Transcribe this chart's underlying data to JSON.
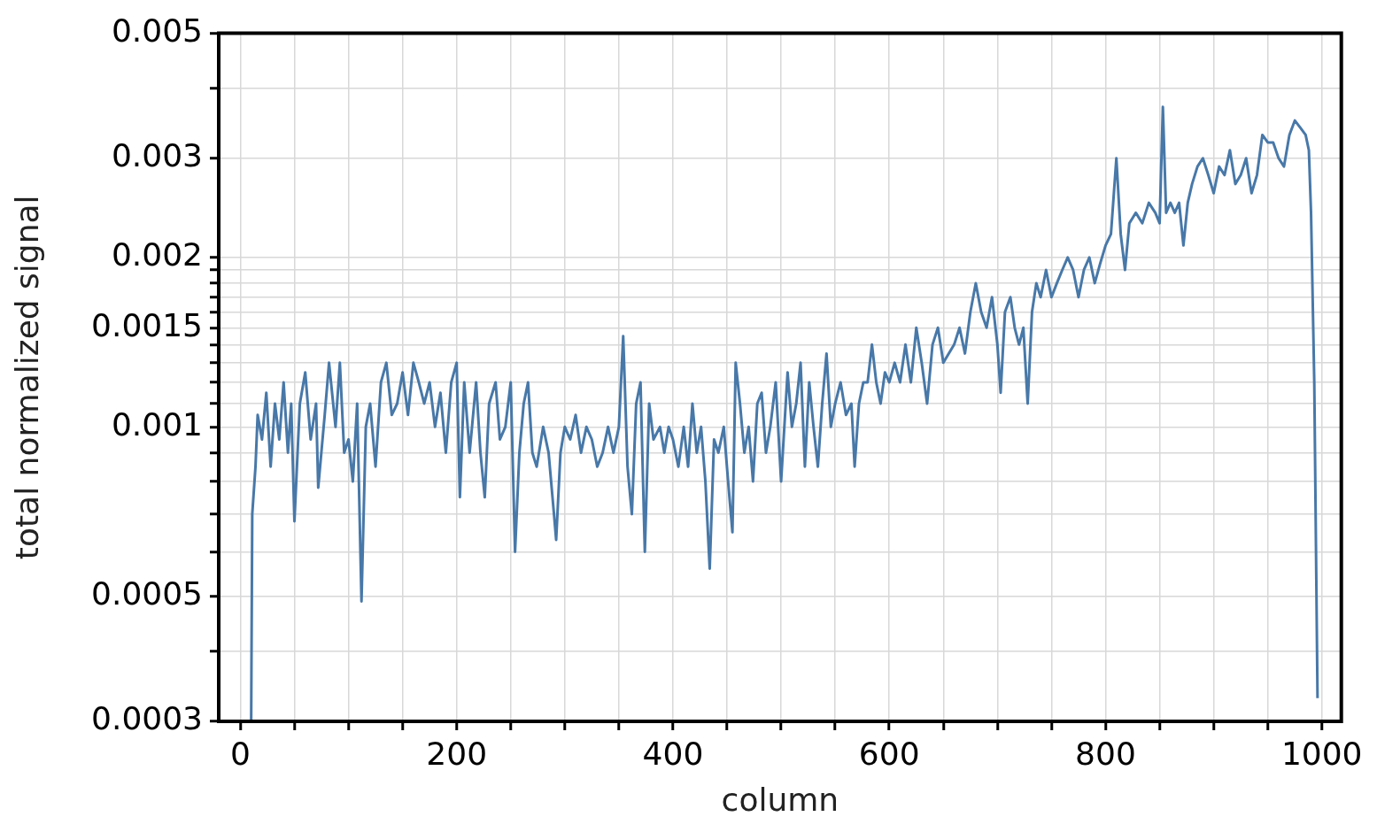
{
  "chart_data": {
    "type": "line",
    "xlabel": "column",
    "ylabel": "total normalized signal",
    "log": "y",
    "grid": true,
    "marker": "none",
    "line_style": "solid",
    "xlim": [
      -20,
      1018
    ],
    "ylim": [
      0.0003,
      0.005
    ],
    "xticks": [
      0,
      {
        "value": 50,
        "label": null
      },
      {
        "value": 100,
        "label": null
      },
      {
        "value": 150,
        "label": null
      },
      200,
      {
        "value": 250,
        "label": null
      },
      {
        "value": 300,
        "label": null
      },
      {
        "value": 350,
        "label": null
      },
      400,
      {
        "value": 450,
        "label": null
      },
      {
        "value": 500,
        "label": null
      },
      {
        "value": 550,
        "label": null
      },
      600,
      {
        "value": 650,
        "label": null
      },
      {
        "value": 700,
        "label": null
      },
      {
        "value": 750,
        "label": null
      },
      800,
      {
        "value": 850,
        "label": null
      },
      {
        "value": 900,
        "label": null
      },
      {
        "value": 950,
        "label": null
      },
      1000
    ],
    "yticks": [
      0.0003,
      {
        "value": 0.0004,
        "label": null
      },
      0.0005,
      {
        "value": 0.0006,
        "label": null
      },
      {
        "value": 0.0007,
        "label": null
      },
      {
        "value": 0.0008,
        "label": null
      },
      {
        "value": 0.0009,
        "label": null
      },
      0.001,
      {
        "value": 0.0011,
        "label": null
      },
      {
        "value": 0.0012,
        "label": null
      },
      {
        "value": 0.0013,
        "label": null
      },
      {
        "value": 0.0014,
        "label": null
      },
      0.0015,
      {
        "value": 0.0016,
        "label": null
      },
      {
        "value": 0.0017,
        "label": null
      },
      {
        "value": 0.0018,
        "label": null
      },
      {
        "value": 0.0019,
        "label": null
      },
      0.002,
      0.003,
      {
        "value": 0.004,
        "label": null
      },
      0.005
    ],
    "series": [
      {
        "color": "#4878a8",
        "x": [
          10,
          11,
          14,
          16,
          20,
          24,
          28,
          32,
          36,
          40,
          44,
          47,
          50,
          55,
          60,
          65,
          70,
          72,
          78,
          82,
          88,
          92,
          96,
          100,
          104,
          108,
          112,
          116,
          120,
          125,
          130,
          135,
          140,
          145,
          150,
          155,
          160,
          165,
          170,
          175,
          180,
          185,
          190,
          195,
          200,
          203,
          207,
          212,
          218,
          222,
          226,
          230,
          236,
          240,
          245,
          250,
          254,
          258,
          262,
          266,
          270,
          274,
          280,
          285,
          290,
          292,
          296,
          300,
          305,
          310,
          315,
          320,
          325,
          330,
          335,
          340,
          345,
          350,
          354,
          358,
          362,
          366,
          370,
          374,
          378,
          382,
          388,
          392,
          396,
          400,
          405,
          410,
          414,
          418,
          422,
          426,
          430,
          434,
          438,
          442,
          447,
          451,
          455,
          458,
          462,
          466,
          470,
          474,
          478,
          482,
          486,
          490,
          495,
          500,
          506,
          510,
          514,
          518,
          522,
          526,
          530,
          534,
          538,
          542,
          546,
          550,
          555,
          560,
          565,
          568,
          572,
          576,
          580,
          584,
          588,
          592,
          596,
          600,
          605,
          610,
          615,
          620,
          625,
          630,
          635,
          640,
          645,
          650,
          655,
          660,
          665,
          670,
          675,
          680,
          685,
          690,
          695,
          700,
          703,
          707,
          712,
          716,
          720,
          724,
          728,
          732,
          736,
          740,
          745,
          750,
          755,
          760,
          765,
          770,
          775,
          780,
          785,
          790,
          795,
          800,
          805,
          810,
          814,
          818,
          822,
          828,
          834,
          840,
          846,
          850,
          853,
          856,
          860,
          864,
          868,
          872,
          876,
          880,
          885,
          890,
          895,
          900,
          905,
          910,
          915,
          920,
          925,
          930,
          935,
          940,
          945,
          950,
          955,
          960,
          965,
          970,
          975,
          980,
          985,
          988,
          990,
          993,
          996
        ],
        "values": [
          0.0003,
          0.0007,
          0.00085,
          0.00105,
          0.00095,
          0.00115,
          0.00085,
          0.0011,
          0.00095,
          0.0012,
          0.0009,
          0.0011,
          0.00068,
          0.0011,
          0.00125,
          0.00095,
          0.0011,
          0.00078,
          0.00105,
          0.0013,
          0.001,
          0.0013,
          0.0009,
          0.00095,
          0.0008,
          0.0011,
          0.00049,
          0.001,
          0.0011,
          0.00085,
          0.0012,
          0.0013,
          0.00105,
          0.0011,
          0.00125,
          0.00105,
          0.0013,
          0.0012,
          0.0011,
          0.0012,
          0.001,
          0.00115,
          0.0009,
          0.0012,
          0.0013,
          0.00075,
          0.0012,
          0.0009,
          0.0012,
          0.0009,
          0.00075,
          0.0011,
          0.0012,
          0.00095,
          0.001,
          0.0012,
          0.0006,
          0.0009,
          0.0011,
          0.0012,
          0.0009,
          0.00085,
          0.001,
          0.0009,
          0.0007,
          0.00063,
          0.0009,
          0.001,
          0.00095,
          0.00105,
          0.0009,
          0.001,
          0.00095,
          0.00085,
          0.0009,
          0.001,
          0.0009,
          0.001,
          0.00145,
          0.00085,
          0.0007,
          0.0011,
          0.0012,
          0.0006,
          0.0011,
          0.00095,
          0.001,
          0.0009,
          0.001,
          0.00095,
          0.00085,
          0.001,
          0.00085,
          0.0011,
          0.0009,
          0.001,
          0.0008,
          0.00056,
          0.00095,
          0.0009,
          0.001,
          0.0008,
          0.00065,
          0.0013,
          0.0011,
          0.0009,
          0.001,
          0.0008,
          0.0011,
          0.00115,
          0.0009,
          0.001,
          0.0012,
          0.0008,
          0.00125,
          0.001,
          0.0011,
          0.0013,
          0.00085,
          0.0012,
          0.001,
          0.00085,
          0.0011,
          0.00135,
          0.001,
          0.0011,
          0.0012,
          0.00105,
          0.0011,
          0.00085,
          0.0011,
          0.0012,
          0.0012,
          0.0014,
          0.0012,
          0.0011,
          0.00125,
          0.0012,
          0.0013,
          0.0012,
          0.0014,
          0.0012,
          0.0015,
          0.0013,
          0.0011,
          0.0014,
          0.0015,
          0.0013,
          0.00135,
          0.0014,
          0.0015,
          0.00135,
          0.0016,
          0.0018,
          0.0016,
          0.0015,
          0.0017,
          0.0014,
          0.00115,
          0.0016,
          0.0017,
          0.0015,
          0.0014,
          0.0015,
          0.0011,
          0.0016,
          0.0018,
          0.0017,
          0.0019,
          0.0017,
          0.0018,
          0.0019,
          0.002,
          0.0019,
          0.0017,
          0.0019,
          0.002,
          0.0018,
          0.00195,
          0.0021,
          0.0022,
          0.003,
          0.0022,
          0.0019,
          0.0023,
          0.0024,
          0.0023,
          0.0025,
          0.0024,
          0.0023,
          0.0037,
          0.0024,
          0.0025,
          0.0024,
          0.0025,
          0.0021,
          0.0025,
          0.0027,
          0.0029,
          0.003,
          0.0028,
          0.0026,
          0.0029,
          0.0028,
          0.0031,
          0.0027,
          0.0028,
          0.003,
          0.0026,
          0.0028,
          0.0033,
          0.0032,
          0.0032,
          0.003,
          0.0029,
          0.0033,
          0.0035,
          0.0034,
          0.0033,
          0.0031,
          0.0024,
          0.0012,
          0.00033
        ]
      }
    ]
  }
}
